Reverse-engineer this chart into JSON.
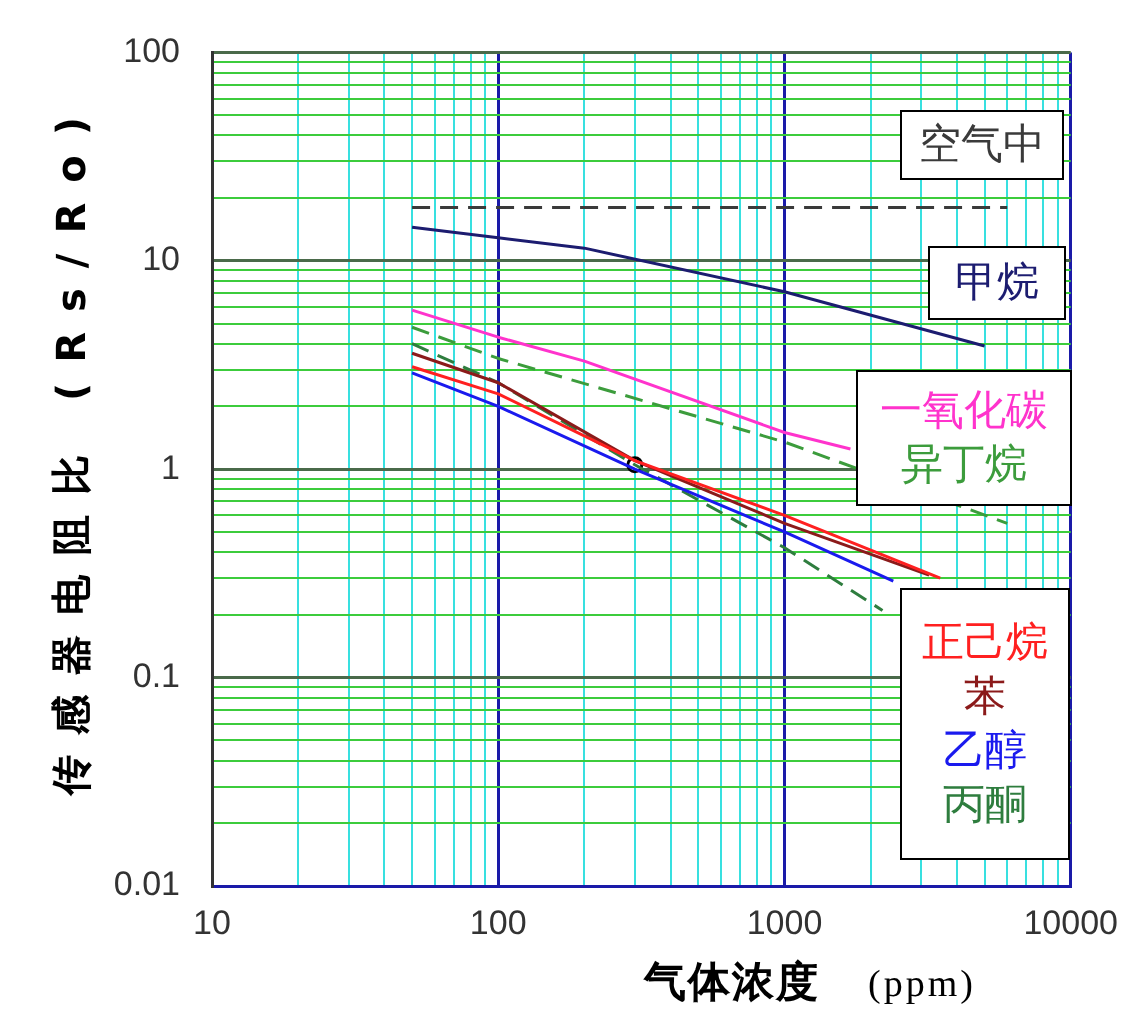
{
  "chart_data": {
    "type": "line",
    "xlabel": "气体浓度 (ppm)",
    "ylabel": "传感器电阻比 (Rs/Ro)",
    "log": "xy",
    "grid": true,
    "xlim": [
      10,
      10000
    ],
    "ylim": [
      0.01,
      100
    ],
    "xticks": [
      10,
      {
        "value": 20,
        "label": null
      },
      {
        "value": 30,
        "label": null
      },
      {
        "value": 40,
        "label": null
      },
      {
        "value": 50,
        "label": null
      },
      {
        "value": 60,
        "label": null
      },
      {
        "value": 70,
        "label": null
      },
      {
        "value": 80,
        "label": null
      },
      {
        "value": 90,
        "label": null
      },
      100,
      {
        "value": 200,
        "label": null
      },
      {
        "value": 300,
        "label": null
      },
      {
        "value": 400,
        "label": null
      },
      {
        "value": 500,
        "label": null
      },
      {
        "value": 600,
        "label": null
      },
      {
        "value": 700,
        "label": null
      },
      {
        "value": 800,
        "label": null
      },
      {
        "value": 900,
        "label": null
      },
      1000,
      {
        "value": 2000,
        "label": null
      },
      {
        "value": 3000,
        "label": null
      },
      {
        "value": 4000,
        "label": null
      },
      {
        "value": 5000,
        "label": null
      },
      {
        "value": 6000,
        "label": null
      },
      {
        "value": 7000,
        "label": null
      },
      {
        "value": 8000,
        "label": null
      },
      {
        "value": 9000,
        "label": null
      },
      10000
    ],
    "yticks": [
      0.01,
      {
        "value": 0.02,
        "label": null
      },
      {
        "value": 0.03,
        "label": null
      },
      {
        "value": 0.04,
        "label": null
      },
      {
        "value": 0.05,
        "label": null
      },
      {
        "value": 0.06,
        "label": null
      },
      {
        "value": 0.07,
        "label": null
      },
      {
        "value": 0.08,
        "label": null
      },
      {
        "value": 0.09,
        "label": null
      },
      0.1,
      {
        "value": 0.2,
        "label": null
      },
      {
        "value": 0.3,
        "label": null
      },
      {
        "value": 0.4,
        "label": null
      },
      {
        "value": 0.5,
        "label": null
      },
      {
        "value": 0.6,
        "label": null
      },
      {
        "value": 0.7,
        "label": null
      },
      {
        "value": 0.8,
        "label": null
      },
      {
        "value": 0.9,
        "label": null
      },
      1,
      {
        "value": 2,
        "label": null
      },
      {
        "value": 3,
        "label": null
      },
      {
        "value": 4,
        "label": null
      },
      {
        "value": 5,
        "label": null
      },
      {
        "value": 6,
        "label": null
      },
      {
        "value": 7,
        "label": null
      },
      {
        "value": 8,
        "label": null
      },
      {
        "value": 9,
        "label": null
      },
      10,
      {
        "value": 20,
        "label": null
      },
      {
        "value": 30,
        "label": null
      },
      {
        "value": 40,
        "label": null
      },
      {
        "value": 50,
        "label": null
      },
      {
        "value": 60,
        "label": null
      },
      {
        "value": 70,
        "label": null
      },
      {
        "value": 80,
        "label": null
      },
      {
        "value": 90,
        "label": null
      },
      100
    ],
    "series": [
      {
        "name": "空气中",
        "color": "#3a3a3a",
        "line_style": "dashed",
        "x": [
          50,
          6000
        ],
        "values": [
          18,
          18
        ]
      },
      {
        "name": "甲烷",
        "color": "#1c1c70",
        "line_style": "solid",
        "x": [
          50,
          100,
          200,
          1000,
          5000
        ],
        "values": [
          14.5,
          12.9,
          11.5,
          7.1,
          3.9
        ]
      },
      {
        "name": "一氧化碳",
        "color": "#ff33cc",
        "line_style": "solid",
        "x": [
          50,
          100,
          200,
          1000,
          1700
        ],
        "values": [
          5.8,
          4.3,
          3.3,
          1.5,
          1.25
        ]
      },
      {
        "name": "异丁烷",
        "color": "#3c9c3c",
        "line_style": "dashed",
        "x": [
          50,
          100,
          1000,
          6000
        ],
        "values": [
          4.8,
          3.4,
          1.35,
          0.55
        ]
      },
      {
        "name": "正己烷",
        "color": "#ff2020",
        "line_style": "solid",
        "x": [
          50,
          100,
          300,
          1000,
          3500
        ],
        "values": [
          3.1,
          2.3,
          1.1,
          0.6,
          0.3
        ]
      },
      {
        "name": "苯",
        "color": "#8b1a1a",
        "line_style": "solid",
        "x": [
          50,
          100,
          300,
          1000,
          3200
        ],
        "values": [
          3.6,
          2.6,
          1.1,
          0.55,
          0.31
        ]
      },
      {
        "name": "乙醇",
        "color": "#1a1aee",
        "line_style": "solid",
        "x": [
          50,
          100,
          300,
          1000,
          2400
        ],
        "values": [
          2.9,
          2.0,
          1.0,
          0.5,
          0.29
        ]
      },
      {
        "name": "丙酮",
        "color": "#2e7d3e",
        "line_style": "dashed",
        "x": [
          50,
          100,
          300,
          1000,
          2200
        ],
        "values": [
          4.0,
          2.6,
          1.05,
          0.42,
          0.21
        ]
      },
      {
        "type": "scatter",
        "color": "#000000",
        "marker": "circle",
        "x": [
          300
        ],
        "values": [
          1.05
        ]
      }
    ]
  }
}
